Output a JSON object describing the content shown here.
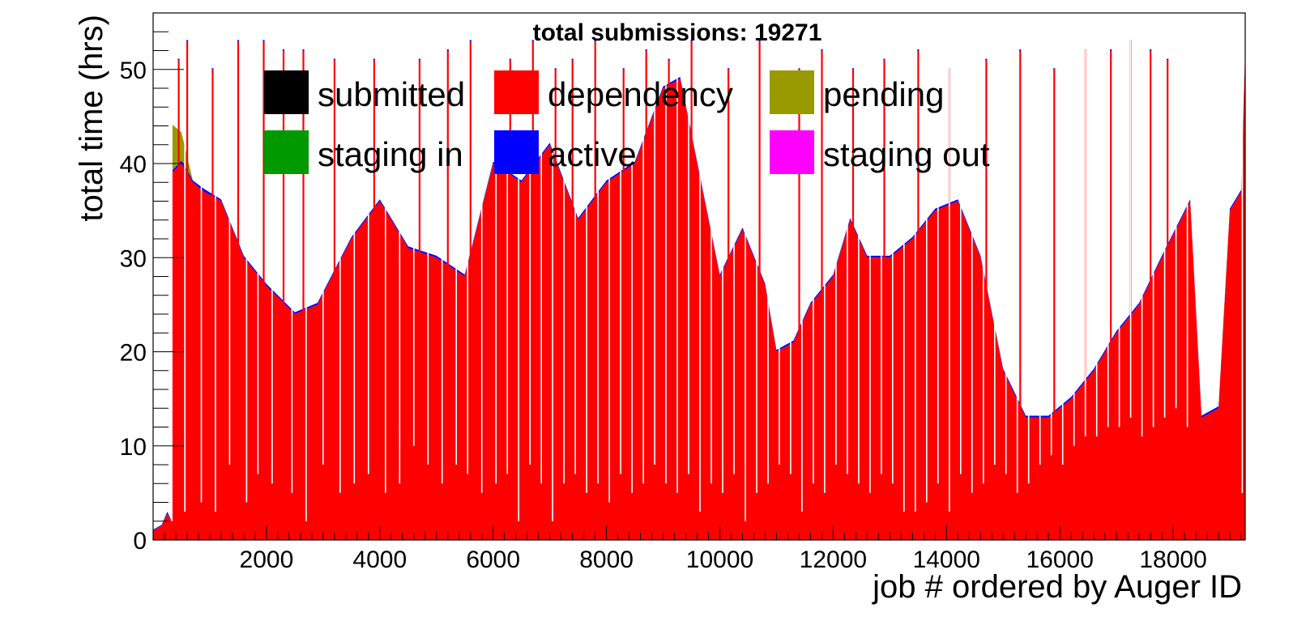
{
  "chart_data": {
    "type": "bar",
    "title": "total submissions: 19271",
    "xlabel": "job # ordered by Auger ID",
    "ylabel": "total time (hrs)",
    "xlim": [
      0,
      19271
    ],
    "ylim": [
      0,
      56
    ],
    "xticks": [
      2000,
      4000,
      6000,
      8000,
      10000,
      12000,
      14000,
      16000,
      18000
    ],
    "yticks": [
      0,
      10,
      20,
      30,
      40,
      50
    ],
    "stacked": true,
    "grid": false,
    "legend_placement": "top",
    "legend": [
      {
        "name": "submitted",
        "color": "#000000"
      },
      {
        "name": "dependency",
        "color": "#ff0000"
      },
      {
        "name": "pending",
        "color": "#999900"
      },
      {
        "name": "staging in",
        "color": "#009900"
      },
      {
        "name": "active",
        "color": "#0000ff"
      },
      {
        "name": "staging out",
        "color": "#ff00ff"
      }
    ],
    "series_colors": {
      "dependency": "#ff0000",
      "active": "#0000ff",
      "pending": "#999900"
    },
    "dependency_baseline": {
      "x": [
        0,
        150,
        250,
        320,
        330,
        500,
        700,
        900,
        1200,
        1600,
        2000,
        2500,
        2900,
        3500,
        4000,
        4500,
        5000,
        5500,
        6000,
        6500,
        7000,
        7500,
        8000,
        8500,
        9000,
        9300,
        9600,
        10000,
        10400,
        10800,
        11000,
        11300,
        11600,
        12000,
        12300,
        12600,
        13000,
        13400,
        13800,
        14200,
        14600,
        15000,
        15400,
        15800,
        16200,
        16600,
        17000,
        17400,
        17800,
        18300,
        18500,
        18800,
        19000,
        19200,
        19271
      ],
      "dependency": [
        1,
        1.5,
        2.8,
        2,
        39,
        40,
        38,
        37,
        36,
        30,
        27,
        24,
        25,
        32,
        36,
        31,
        30,
        28,
        40,
        38,
        42,
        34,
        38,
        40,
        48,
        49,
        40,
        28,
        33,
        27,
        20,
        21,
        25,
        28,
        34,
        30,
        30,
        32,
        35,
        36,
        30,
        18,
        13,
        13,
        15,
        18,
        22,
        25,
        30,
        36,
        13,
        14,
        35,
        37,
        52
      ],
      "active": [
        0.1,
        0.1,
        0.2,
        0.1,
        0.2,
        0.3,
        0.2,
        0.3,
        0.2,
        0.2,
        0.2,
        0.2,
        0.2,
        0.2,
        0.2,
        0.2,
        0.2,
        0.2,
        0.2,
        0.2,
        0.2,
        0.2,
        0.2,
        0.2,
        0.2,
        0.2,
        0.2,
        0.2,
        0.2,
        0.2,
        0.2,
        0.2,
        0.2,
        0.2,
        0.2,
        0.2,
        0.2,
        0.2,
        0.2,
        0.2,
        0.2,
        0.2,
        0.2,
        0.2,
        0.2,
        0.2,
        0.2,
        0.2,
        0.2,
        0.2,
        0.2,
        0.2,
        0.2,
        0.2,
        0.3
      ],
      "pending": [
        0,
        0,
        0,
        0,
        5,
        3,
        0,
        0,
        0,
        0,
        0,
        0,
        0,
        0,
        0,
        0,
        0,
        0,
        0,
        0,
        0,
        0,
        0,
        0,
        0,
        0,
        0,
        0,
        0,
        0,
        0,
        0,
        0,
        0,
        0,
        0,
        0,
        0,
        0,
        0,
        0,
        0,
        0,
        0,
        0,
        0,
        0,
        0,
        0,
        0,
        0,
        0,
        0,
        0,
        0
      ]
    },
    "dependency_spikes": {
      "x": [
        450,
        600,
        1050,
        1500,
        1950,
        2300,
        2650,
        3200,
        3900,
        4700,
        5200,
        5600,
        6300,
        6700,
        7100,
        7400,
        7800,
        8300,
        8700,
        9100,
        9500,
        10150,
        10700,
        11400,
        11800,
        12350,
        12900,
        13500,
        14050,
        14700,
        15300,
        15900,
        16450,
        16900,
        17250,
        17600,
        17900
      ],
      "value": [
        51,
        53,
        50,
        53,
        53,
        52,
        52,
        51,
        51,
        51,
        52,
        53,
        51,
        53,
        50,
        51,
        53,
        50,
        52,
        51,
        53,
        50,
        53,
        50,
        52,
        50,
        51,
        52,
        50,
        51,
        52,
        50,
        52,
        52,
        53,
        52,
        51
      ]
    },
    "dependency_dips": {
      "x": [
        330,
        560,
        850,
        1100,
        1350,
        1650,
        1850,
        2100,
        2450,
        2700,
        3000,
        3300,
        3550,
        3800,
        4100,
        4350,
        4600,
        4850,
        5100,
        5350,
        5550,
        5800,
        6050,
        6250,
        6450,
        6650,
        6850,
        7050,
        7250,
        7450,
        7650,
        7850,
        8050,
        8250,
        8450,
        8650,
        8850,
        9050,
        9250,
        9450,
        9650,
        9850,
        10050,
        10250,
        10450,
        10650,
        10850,
        11050,
        11250,
        11450,
        11650,
        11850,
        12050,
        12250,
        12450,
        12650,
        12850,
        13050,
        13250,
        13450,
        13650,
        13850,
        14050,
        14250,
        14450,
        14650,
        14850,
        15050,
        15250,
        15450,
        15650,
        15850,
        16050,
        16250,
        16450,
        16650,
        16850,
        17050,
        17250,
        17450,
        17650,
        17850,
        18050,
        18250,
        19220
      ],
      "value": [
        2,
        3,
        4,
        3,
        8,
        4,
        7,
        6,
        5,
        2,
        8,
        5,
        6,
        7,
        5,
        6,
        10,
        8,
        6,
        8,
        7,
        5,
        6,
        7,
        2,
        8,
        6,
        2,
        6,
        7,
        5,
        6,
        4,
        7,
        5,
        6,
        8,
        6,
        5,
        7,
        3,
        6,
        5,
        7,
        2,
        5,
        6,
        8,
        7,
        3,
        6,
        5,
        8,
        7,
        6,
        5,
        7,
        6,
        3,
        3,
        4,
        6,
        3,
        7,
        5,
        6,
        8,
        7,
        5,
        6,
        8,
        9,
        8,
        10,
        11,
        11,
        12,
        12,
        13,
        11,
        12,
        13,
        14,
        12,
        5
      ]
    }
  }
}
